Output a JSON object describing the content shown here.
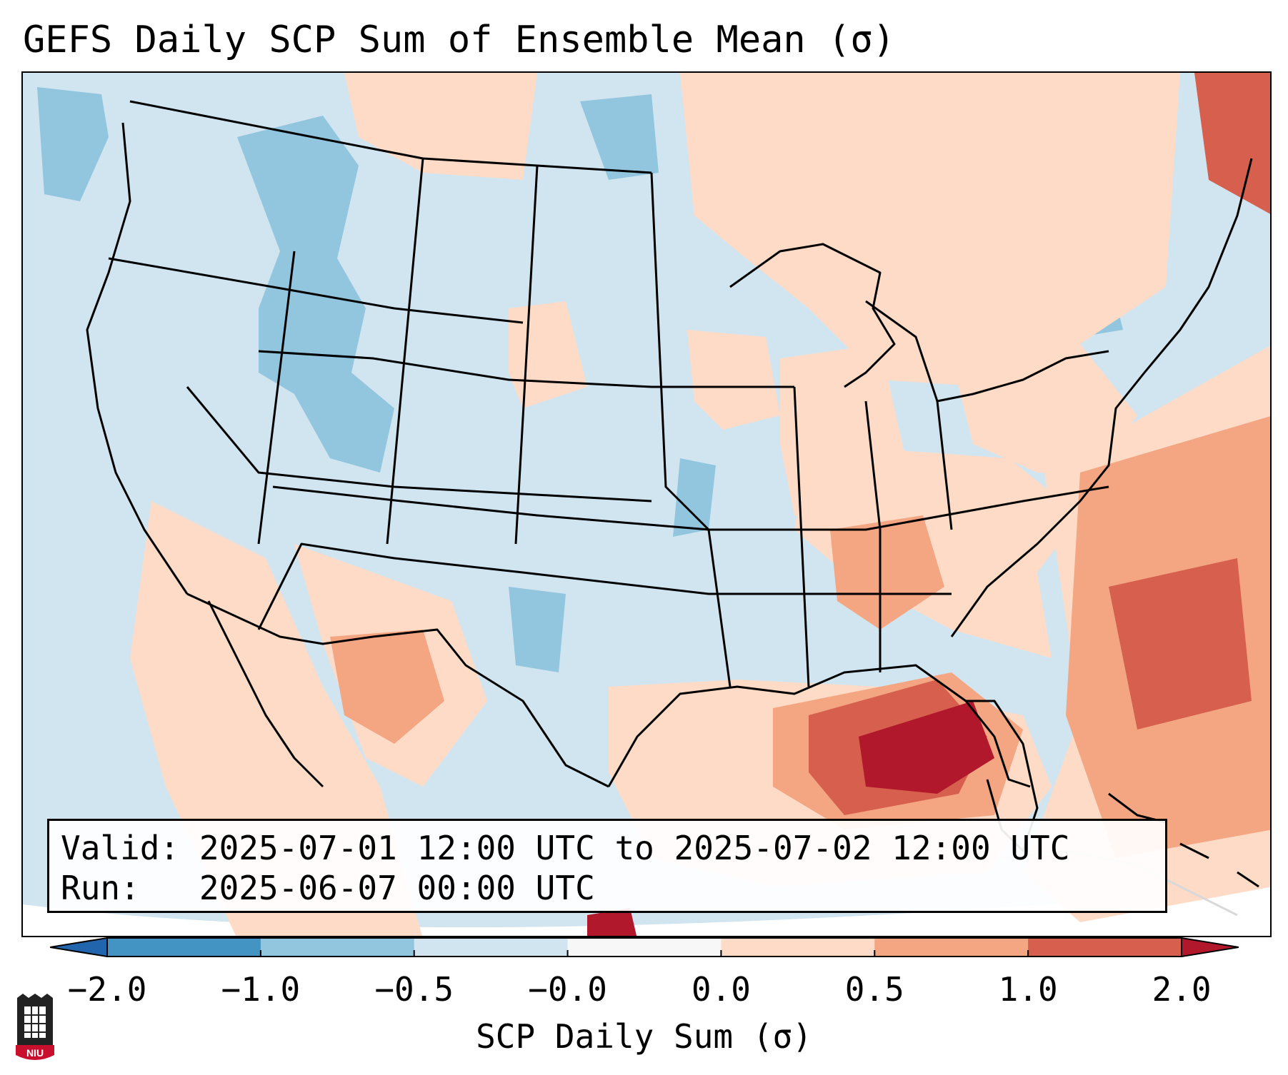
{
  "title": "GEFS Daily SCP Sum of Ensemble Mean (σ)",
  "info": {
    "valid_label": "Valid:",
    "valid_value": "2025-07-01 12:00 UTC to 2025-07-02 12:00 UTC",
    "run_label": "Run:",
    "run_value": "2025-06-07 00:00 UTC"
  },
  "colorbar": {
    "label": "SCP Daily Sum (σ)",
    "tick_labels": [
      "−2.0",
      "−1.0",
      "−0.5",
      "−0.0",
      "0.0",
      "0.5",
      "1.0",
      "2.0"
    ],
    "bins": [
      {
        "from": "−2.0",
        "to": "−1.0",
        "color": "#4393c3"
      },
      {
        "from": "−1.0",
        "to": "−0.5",
        "color": "#92c5de"
      },
      {
        "from": "−0.5",
        "to": "−0.0",
        "color": "#d1e5f0"
      },
      {
        "from": "−0.0",
        "to": "0.0",
        "color": "#f7f7f7"
      },
      {
        "from": "0.0",
        "to": "0.5",
        "color": "#fddbc7"
      },
      {
        "from": "0.5",
        "to": "1.0",
        "color": "#f4a582"
      },
      {
        "from": "1.0",
        "to": "2.0",
        "color": "#d6604d"
      }
    ],
    "under_color": "#2166ac",
    "over_color": "#b2182b"
  },
  "map": {
    "region": "Contiguous United States, northern Mexico, Gulf of Mexico, western Atlantic",
    "field": "SCP daily sum anomaly (σ)",
    "regions": [
      {
        "name": "Pacific Northwest / Northern Rockies",
        "category": "−1.0 to −0.5"
      },
      {
        "name": "Great Basin / Plains",
        "category": "−0.5 to −0.0"
      },
      {
        "name": "Desert Southwest / Northern Mexico",
        "category": "0.5 to 1.0"
      },
      {
        "name": "Southeast / Tennessee Valley",
        "category": "0.0 to 1.0"
      },
      {
        "name": "Gulf of Mexico / Florida",
        "category": "1.0 to 2.0+"
      },
      {
        "name": "Western Atlantic",
        "category": "0.5 to 2.0"
      },
      {
        "name": "Eastern Canada / Northeast",
        "category": "0.0 to 1.0"
      }
    ]
  },
  "logo_text": "NIU"
}
